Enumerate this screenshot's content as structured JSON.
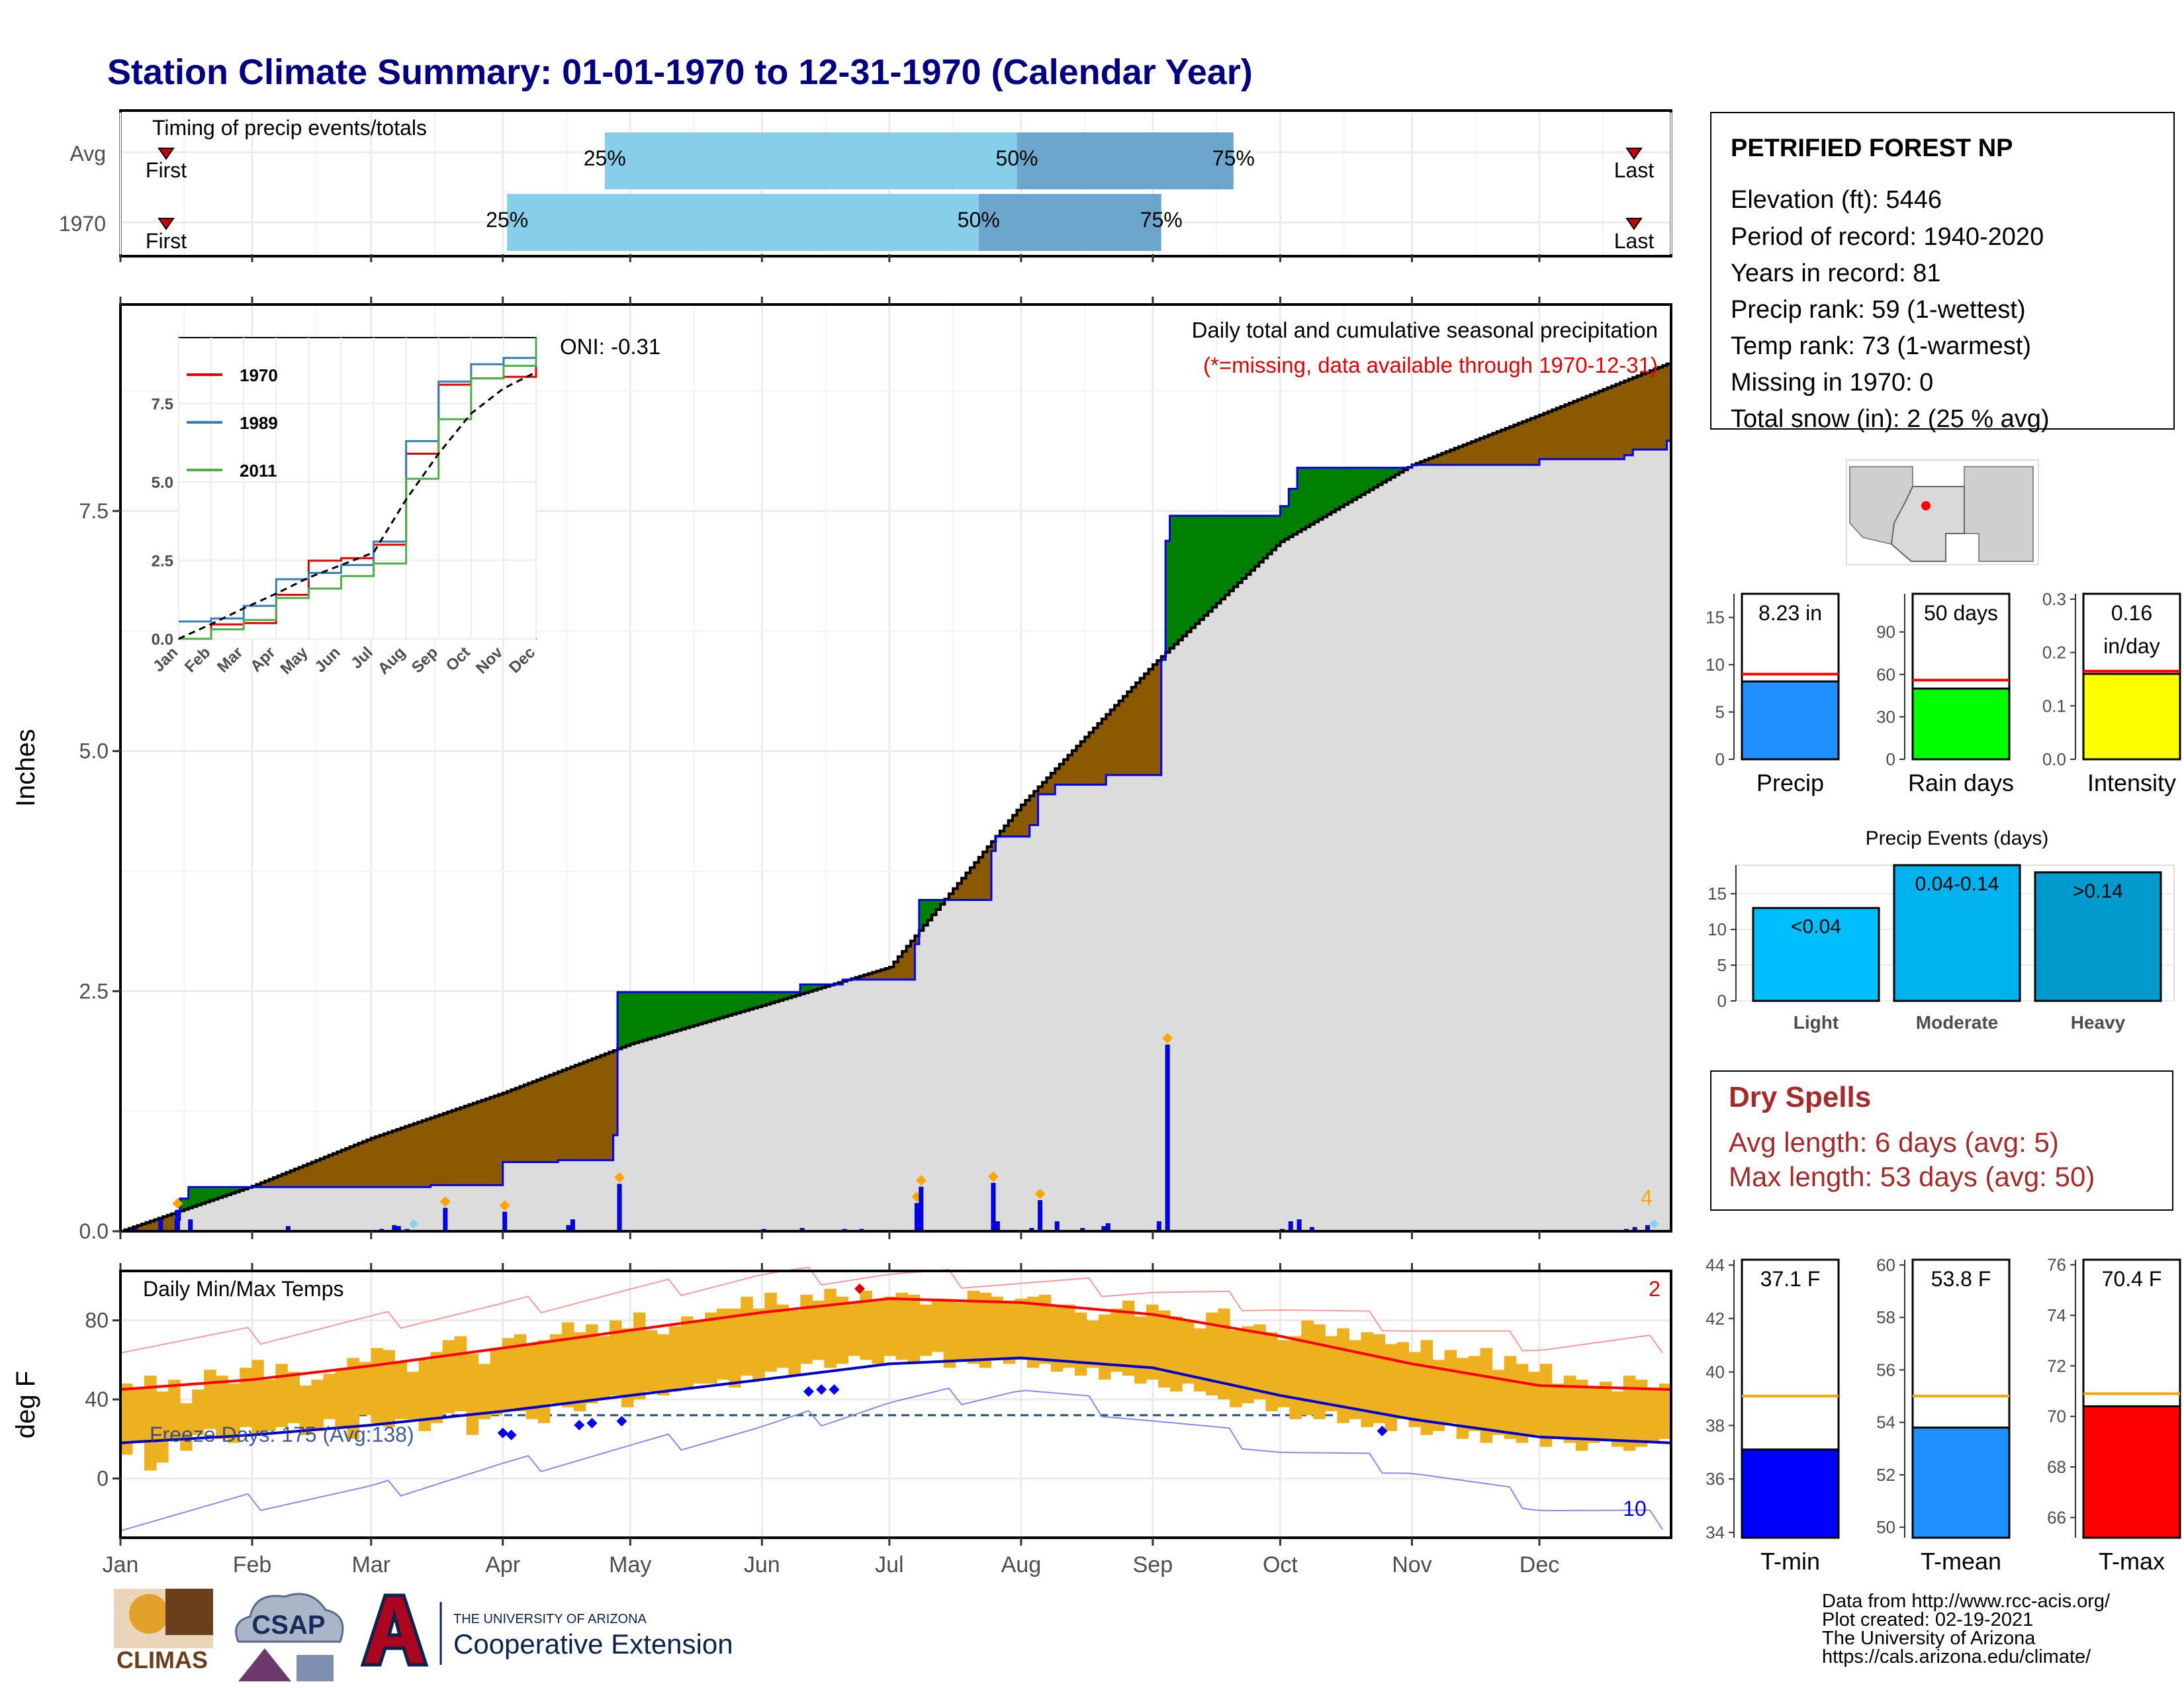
{
  "title": "Station Climate Summary: 01-01-1970 to 12-31-1970 (Calendar Year)",
  "timing": {
    "label": "Timing of precip events/totals",
    "rows": [
      "Avg",
      "1970"
    ],
    "first_label": "First",
    "last_label": "Last",
    "pct_labels": [
      "25%",
      "50%",
      "75%"
    ]
  },
  "months": [
    "Jan",
    "Feb",
    "Mar",
    "Apr",
    "May",
    "Jun",
    "Jul",
    "Aug",
    "Sep",
    "Oct",
    "Nov",
    "Dec"
  ],
  "precip": {
    "ylabel": "Inches",
    "yticks": [
      "0.0",
      "2.5",
      "5.0",
      "7.5"
    ],
    "oni": "ONI: -0.31",
    "subtitle": "Daily total and cumulative seasonal precipitation",
    "note": "(*=missing, data available through 1970-12-31)",
    "corner_count": "4"
  },
  "inset": {
    "series": [
      "1970",
      "1989",
      "2011"
    ],
    "yticks": [
      "0.0",
      "2.5",
      "5.0",
      "7.5"
    ]
  },
  "temps": {
    "ylabel": "deg F",
    "label": "Daily Min/Max Temps",
    "yticks": [
      "0",
      "40",
      "80"
    ],
    "freeze": "Freeze Days: 175 (Avg:138)",
    "top_count": "2",
    "bottom_count": "10"
  },
  "station": {
    "name": "PETRIFIED FOREST NP",
    "lines": [
      "Elevation (ft): 5446",
      "Period of record: 1940-2020",
      "Years in record: 81",
      "Precip rank: 59 (1-wettest)",
      "Temp rank: 73 (1-warmest)",
      "Missing in 1970: 0",
      "Total snow (in): 2 (25 % avg)"
    ]
  },
  "dry_spells": {
    "title": "Dry Spells",
    "avg": "Avg length: 6 days (avg: 5)",
    "max": "Max length: 53 days (avg: 50)"
  },
  "events_title": "Precip Events (days)",
  "footer": [
    "Data from http://www.rcc-acis.org/",
    "Plot created: 02-19-2021",
    "The University of Arizona",
    "https://cals.arizona.edu/climate/"
  ],
  "logos": {
    "climas": "CLIMAS",
    "csap": "CSAP",
    "ua_small": "THE UNIVERSITY OF ARIZONA",
    "ua_big": "Cooperative Extension"
  },
  "colors": {
    "title": "#000080",
    "above_avg": "#008000",
    "below_avg": "#8B5A00",
    "cum_fill": "#DCDCDC",
    "daily_bar": "#0000FF",
    "temp_bar": "#EDB120",
    "tmax_line": "#FF0000",
    "tmin_line": "#0000CC",
    "dry": "#A52A2A"
  },
  "chart_data": [
    {
      "type": "bar",
      "name": "timing",
      "categories": [
        "Avg",
        "1970"
      ],
      "series": [
        {
          "name": "25%",
          "values": [
            "1970-04-25",
            "1970-04-02"
          ]
        },
        {
          "name": "50%",
          "values": [
            "1970-07-31",
            "1970-07-22"
          ]
        },
        {
          "name": "75%",
          "values": [
            "1970-09-20",
            "1970-09-03"
          ]
        }
      ]
    },
    {
      "type": "area",
      "name": "cumulative-precip",
      "xlabel": "",
      "ylabel": "Inches",
      "ylim": [
        0,
        9.65
      ],
      "observed_steps": [
        [
          "01-01",
          0.0
        ],
        [
          "01-14",
          0.12
        ],
        [
          "01-15",
          0.34
        ],
        [
          "01-17",
          0.46
        ],
        [
          "02-09",
          0.46
        ],
        [
          "03-15",
          0.48
        ],
        [
          "04-01",
          0.72
        ],
        [
          "04-14",
          0.74
        ],
        [
          "04-27",
          1.0
        ],
        [
          "04-28",
          2.49
        ],
        [
          "06-01",
          2.49
        ],
        [
          "06-10",
          2.57
        ],
        [
          "06-20",
          2.62
        ],
        [
          "07-06",
          2.62
        ],
        [
          "07-07",
          2.99
        ],
        [
          "07-08",
          3.45
        ],
        [
          "07-25",
          3.96
        ],
        [
          "07-26",
          4.11
        ],
        [
          "08-03",
          4.23
        ],
        [
          "08-05",
          4.55
        ],
        [
          "08-09",
          4.65
        ],
        [
          "08-21",
          4.75
        ],
        [
          "09-02",
          4.75
        ],
        [
          "09-03",
          5.95
        ],
        [
          "09-04",
          7.19
        ],
        [
          "09-05",
          7.45
        ],
        [
          "09-30",
          7.45
        ],
        [
          "10-01",
          7.55
        ],
        [
          "10-03",
          7.73
        ],
        [
          "10-05",
          7.95
        ],
        [
          "10-10",
          7.95
        ],
        [
          "11-01",
          7.98
        ],
        [
          "12-01",
          8.04
        ],
        [
          "12-21",
          8.08
        ],
        [
          "12-23",
          8.14
        ],
        [
          "12-31",
          8.23
        ]
      ],
      "average_points": [
        [
          "01-01",
          0.0
        ],
        [
          "02-01",
          0.47
        ],
        [
          "03-01",
          0.97
        ],
        [
          "04-01",
          1.44
        ],
        [
          "05-01",
          1.95
        ],
        [
          "06-01",
          2.35
        ],
        [
          "07-01",
          2.75
        ],
        [
          "08-01",
          4.44
        ],
        [
          "09-01",
          5.9
        ],
        [
          "10-01",
          7.18
        ],
        [
          "11-01",
          7.98
        ],
        [
          "12-01",
          8.5
        ],
        [
          "12-31",
          9.05
        ]
      ],
      "daily_bars": [
        [
          "01-04",
          0.03
        ],
        [
          "01-10",
          0.12
        ],
        [
          "01-14",
          0.22
        ],
        [
          "01-17",
          0.12
        ],
        [
          "02-09",
          0.05
        ],
        [
          "03-03",
          0.02
        ],
        [
          "03-06",
          0.06
        ],
        [
          "03-07",
          0.05
        ],
        [
          "03-09",
          0.02
        ],
        [
          "03-18",
          0.24
        ],
        [
          "04-01",
          0.2
        ],
        [
          "04-16",
          0.06
        ],
        [
          "04-17",
          0.12
        ],
        [
          "04-28",
          0.49
        ],
        [
          "06-01",
          0.02
        ],
        [
          "06-10",
          0.03
        ],
        [
          "06-20",
          0.02
        ],
        [
          "06-24",
          0.02
        ],
        [
          "07-07",
          0.29
        ],
        [
          "07-08",
          0.46
        ],
        [
          "07-25",
          0.5
        ],
        [
          "07-26",
          0.1
        ],
        [
          "08-03",
          0.03
        ],
        [
          "08-05",
          0.32
        ],
        [
          "08-09",
          0.1
        ],
        [
          "08-15",
          0.03
        ],
        [
          "08-20",
          0.05
        ],
        [
          "08-21",
          0.08
        ],
        [
          "09-02",
          0.1
        ],
        [
          "09-04",
          1.94
        ],
        [
          "10-01",
          0.02
        ],
        [
          "10-03",
          0.1
        ],
        [
          "10-05",
          0.12
        ],
        [
          "10-08",
          0.04
        ],
        [
          "12-21",
          0.02
        ],
        [
          "12-23",
          0.04
        ],
        [
          "12-26",
          0.06
        ]
      ]
    },
    {
      "type": "line",
      "name": "inset-cumulative",
      "x": [
        "Jan",
        "Feb",
        "Mar",
        "Apr",
        "May",
        "Jun",
        "Jul",
        "Aug",
        "Sep",
        "Oct",
        "Nov",
        "Dec"
      ],
      "ylim": [
        0,
        9.6
      ],
      "series": [
        {
          "name": "1970",
          "values": [
            0.0,
            0.46,
            0.5,
            1.4,
            2.49,
            2.57,
            3.0,
            5.9,
            8.1,
            8.3,
            8.35,
            8.8
          ]
        },
        {
          "name": "1989",
          "values": [
            0.55,
            0.65,
            1.05,
            1.9,
            2.1,
            2.35,
            3.1,
            6.3,
            8.2,
            8.75,
            8.95,
            9.1
          ]
        },
        {
          "name": "2011",
          "values": [
            0.0,
            0.3,
            0.6,
            1.3,
            1.6,
            2.0,
            2.4,
            5.1,
            7.0,
            8.3,
            8.7,
            9.6
          ]
        },
        {
          "name": "avg",
          "values": [
            0.0,
            0.47,
            0.97,
            1.44,
            1.95,
            2.35,
            2.75,
            4.44,
            5.9,
            7.18,
            7.98,
            8.5
          ]
        }
      ]
    },
    {
      "type": "line",
      "name": "daily-temps",
      "ylabel": "deg F",
      "ylim": [
        -30,
        105
      ],
      "x": [
        "01-01",
        "02-01",
        "03-01",
        "04-01",
        "05-01",
        "06-01",
        "07-01",
        "08-01",
        "09-01",
        "10-01",
        "11-01",
        "12-01",
        "12-31"
      ],
      "series": [
        {
          "name": "avg max",
          "values": [
            45,
            50,
            57,
            66,
            75,
            84,
            91,
            89,
            83,
            72,
            58,
            47,
            45
          ]
        },
        {
          "name": "avg min",
          "values": [
            18,
            22,
            27,
            34,
            42,
            50,
            58,
            61,
            56,
            42,
            30,
            21,
            18
          ]
        },
        {
          "name": "record max",
          "values": [
            68,
            72,
            79,
            86,
            94,
            102,
            103,
            99,
            95,
            87,
            77,
            68,
            68
          ]
        },
        {
          "name": "record min",
          "values": [
            -22,
            -12,
            -7,
            5,
            15,
            25,
            38,
            45,
            30,
            15,
            5,
            -13,
            -22
          ]
        }
      ],
      "daily_range": {
        "max": [
          48,
          46,
          52,
          44,
          50,
          38,
          45,
          55,
          52,
          48,
          56,
          60,
          50,
          58,
          54,
          47,
          50,
          53,
          55,
          61,
          59,
          66,
          65,
          59,
          54,
          60,
          64,
          70,
          72,
          63,
          58,
          66,
          71,
          73,
          68,
          70,
          73,
          79,
          74,
          78,
          72,
          80,
          76,
          84,
          75,
          73,
          77,
          82,
          80,
          84,
          86,
          86,
          92,
          86,
          94,
          88,
          85,
          93,
          90,
          96,
          92,
          89,
          95,
          90,
          92,
          94,
          93,
          88,
          91,
          90,
          89,
          95,
          94,
          92,
          90,
          91,
          92,
          93,
          87,
          88,
          84,
          80,
          83,
          86,
          90,
          82,
          88,
          85,
          82,
          80,
          76,
          84,
          86,
          75,
          77,
          78,
          74,
          70,
          72,
          80,
          78,
          72,
          76,
          70,
          74,
          73,
          68,
          69,
          64,
          70,
          60,
          65,
          61,
          62,
          66,
          55,
          62,
          58,
          54,
          58,
          48,
          52,
          50,
          46,
          49,
          44,
          52,
          50,
          46,
          48
        ],
        "min": [
          12,
          18,
          4,
          8,
          20,
          14,
          22,
          25,
          20,
          18,
          26,
          22,
          24,
          26,
          28,
          22,
          24,
          30,
          26,
          20,
          32,
          28,
          26,
          30,
          30,
          24,
          28,
          33,
          34,
          22,
          30,
          32,
          34,
          34,
          30,
          28,
          38,
          36,
          34,
          38,
          40,
          42,
          36,
          40,
          44,
          42,
          44,
          46,
          48,
          48,
          50,
          46,
          52,
          50,
          54,
          56,
          52,
          58,
          60,
          56,
          58,
          62,
          60,
          58,
          62,
          60,
          58,
          62,
          64,
          56,
          60,
          58,
          56,
          60,
          58,
          60,
          56,
          58,
          54,
          56,
          52,
          56,
          50,
          54,
          52,
          48,
          50,
          46,
          44,
          48,
          44,
          42,
          40,
          36,
          38,
          40,
          34,
          36,
          30,
          32,
          30,
          34,
          28,
          30,
          26,
          28,
          24,
          30,
          26,
          22,
          24,
          28,
          20,
          24,
          18,
          22,
          20,
          18,
          22,
          16,
          20,
          18,
          14,
          18,
          20,
          16,
          14,
          16,
          18,
          20
        ]
      },
      "freeze_days": 175,
      "freeze_days_avg": 138
    },
    {
      "type": "bar",
      "name": "season-totals",
      "categories": [
        "Precip",
        "Rain days",
        "Intensity"
      ],
      "values": [
        8.23,
        50,
        0.16
      ],
      "averages": [
        9.0,
        56,
        0.165
      ],
      "labels": [
        "8.23 in",
        "50 days",
        "0.16 in/day"
      ]
    },
    {
      "type": "bar",
      "name": "precip-events",
      "title": "Precip Events (days)",
      "categories": [
        "Light",
        "Moderate",
        "Heavy"
      ],
      "values": [
        13,
        19,
        18
      ],
      "labels": [
        "<0.04",
        "0.04-0.14",
        ">0.14"
      ],
      "ylim": [
        0,
        19
      ]
    },
    {
      "type": "bar",
      "name": "temp-means",
      "categories": [
        "T-min",
        "T-mean",
        "T-max"
      ],
      "values": [
        37.1,
        53.8,
        70.4
      ],
      "averages": [
        39.1,
        55.0,
        70.9
      ],
      "labels": [
        "37.1 F",
        "53.8 F",
        "70.4 F"
      ]
    }
  ]
}
